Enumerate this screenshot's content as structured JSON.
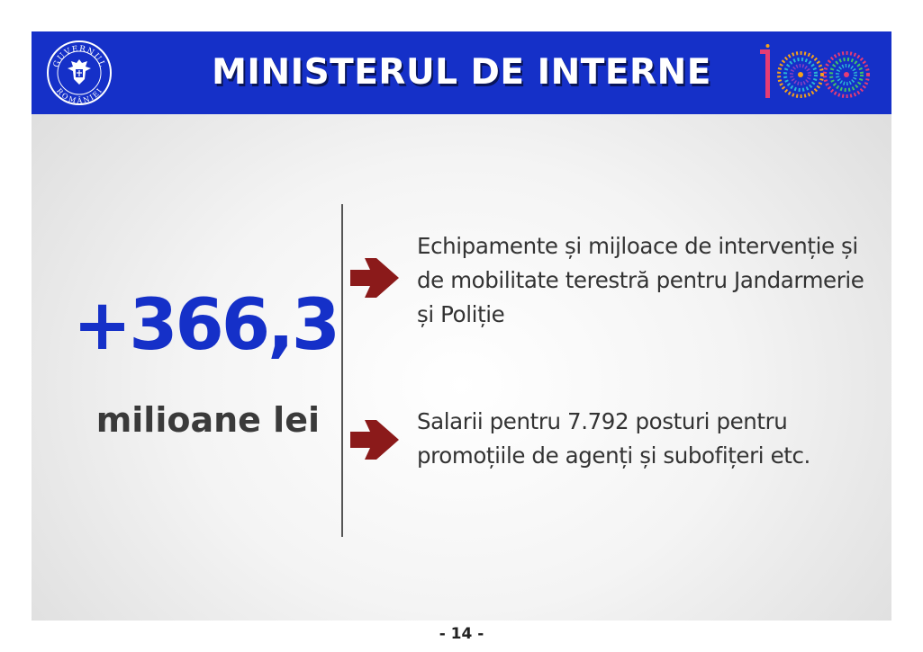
{
  "header": {
    "title": "MINISTERUL DE INTERNE",
    "seal_text_top": "GUVERNUL",
    "seal_text_bottom": "ROMÂNIEI",
    "seal_icon": "government-seal-icon",
    "centenary_icon": "centenary-100-logo-icon",
    "background_color": "#1530c8"
  },
  "highlight": {
    "amount": "+366,3",
    "unit": "milioane lei",
    "amount_color": "#1530c8"
  },
  "items": [
    {
      "text": "Echipamente și mijloace de intervenție și de mobilitate terestră pentru Jandarmerie și Poliție",
      "icon": "arrow-right-icon"
    },
    {
      "text": "Salarii pentru 7.792 posturi pentru promoțiile de agenți și subofițeri etc.",
      "icon": "arrow-right-icon"
    }
  ],
  "arrow_color": "#8b1a1a",
  "page_number": "- 14 -"
}
